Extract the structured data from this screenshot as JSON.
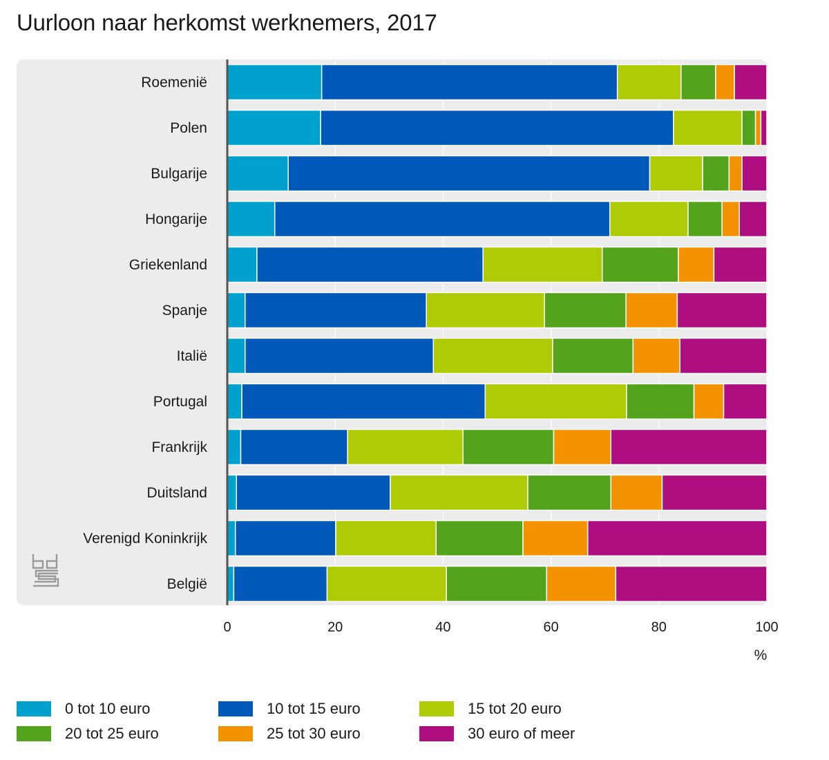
{
  "title": "Uurloon naar herkomst werknemers, 2017",
  "colors": {
    "panel_background": "#ececec",
    "axis_line": "#555555",
    "grid_line": "#ffffff"
  },
  "logo": {
    "name": "cbs-logo-icon"
  },
  "chart_data": {
    "type": "bar",
    "orientation": "horizontal",
    "stacked": true,
    "categories": [
      "Roemenië",
      "Polen",
      "Bulgarije",
      "Hongarije",
      "Griekenland",
      "Spanje",
      "Italië",
      "Portugal",
      "Frankrijk",
      "Duitsland",
      "Verenigd Koninkrijk",
      "België"
    ],
    "series": [
      {
        "name": "0 tot 10 euro",
        "color": "#00a1cd",
        "values": [
          17.5,
          17.3,
          11.3,
          8.8,
          5.5,
          3.3,
          3.3,
          2.7,
          2.5,
          1.7,
          1.5,
          1.2
        ]
      },
      {
        "name": "10 tot 15 euro",
        "color": "#0058b8",
        "values": [
          54.8,
          65.4,
          67.0,
          62.1,
          41.9,
          33.6,
          34.9,
          45.1,
          19.8,
          28.5,
          18.6,
          17.3
        ]
      },
      {
        "name": "15 tot 20 euro",
        "color": "#afcb05",
        "values": [
          11.8,
          12.7,
          9.8,
          14.5,
          22.1,
          21.9,
          22.1,
          26.2,
          21.4,
          25.5,
          18.6,
          22.1
        ]
      },
      {
        "name": "20 tot 25 euro",
        "color": "#53a31d",
        "values": [
          6.4,
          2.5,
          4.9,
          6.3,
          14.1,
          15.1,
          14.9,
          12.5,
          16.8,
          15.4,
          16.1,
          18.6
        ]
      },
      {
        "name": "25 tot 30 euro",
        "color": "#f39200",
        "values": [
          3.5,
          1.0,
          2.4,
          3.2,
          6.6,
          9.5,
          8.7,
          5.5,
          10.6,
          9.5,
          12.0,
          12.8
        ]
      },
      {
        "name": "30 euro of meer",
        "color": "#af0e80",
        "values": [
          6.0,
          1.1,
          4.6,
          5.1,
          9.8,
          16.6,
          16.1,
          8.0,
          28.9,
          19.4,
          33.2,
          28.0
        ]
      }
    ],
    "xlim": [
      0,
      100
    ],
    "xticks": [
      0,
      20,
      40,
      60,
      80,
      100
    ],
    "xlabel": "%",
    "ylabel": "",
    "grid": true,
    "legend_position": "bottom"
  }
}
